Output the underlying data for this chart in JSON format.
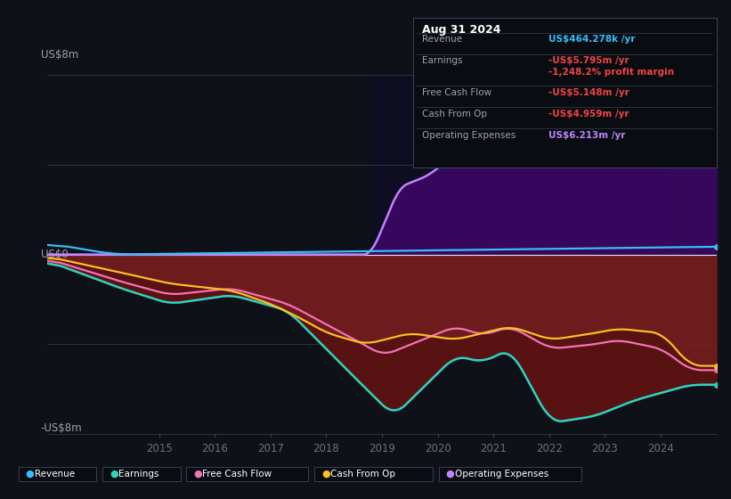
{
  "bg_color": "#0e1117",
  "chart_bg": "#0e1117",
  "ylim": [
    -8,
    8
  ],
  "title_label": "US$8m",
  "zero_label": "US$0",
  "neg_label": "-US$8m",
  "revenue_color": "#38bdf8",
  "earnings_color": "#2dd4bf",
  "fcf_color": "#f472b6",
  "cashop_color": "#fbbf24",
  "opex_color": "#c084fc",
  "fill_neg_color": "#7f1d1d",
  "fill_opex_color": "#3b0764",
  "grid_color": "#374151",
  "zero_line_color": "#e5e7eb",
  "tick_color": "#6b7280",
  "tooltip": {
    "date": "Aug 31 2024",
    "revenue_label": "Revenue",
    "revenue_value": "US$464.278k /yr",
    "revenue_color": "#38bdf8",
    "earnings_label": "Earnings",
    "earnings_value": "-US$5.795m /yr",
    "earnings_color": "#ef4444",
    "margin_value": "-1,248.2%",
    "margin_label": " profit margin",
    "margin_color": "#ef4444",
    "fcf_label": "Free Cash Flow",
    "fcf_value": "-US$5.148m /yr",
    "fcf_color": "#ef4444",
    "cashop_label": "Cash From Op",
    "cashop_value": "-US$4.959m /yr",
    "cashop_color": "#ef4444",
    "opex_label": "Operating Expenses",
    "opex_value": "US$6.213m /yr",
    "opex_color": "#c084fc"
  },
  "legend": [
    {
      "label": "Revenue",
      "color": "#38bdf8"
    },
    {
      "label": "Earnings",
      "color": "#2dd4bf"
    },
    {
      "label": "Free Cash Flow",
      "color": "#f472b6"
    },
    {
      "label": "Cash From Op",
      "color": "#fbbf24"
    },
    {
      "label": "Operating Expenses",
      "color": "#c084fc"
    }
  ]
}
